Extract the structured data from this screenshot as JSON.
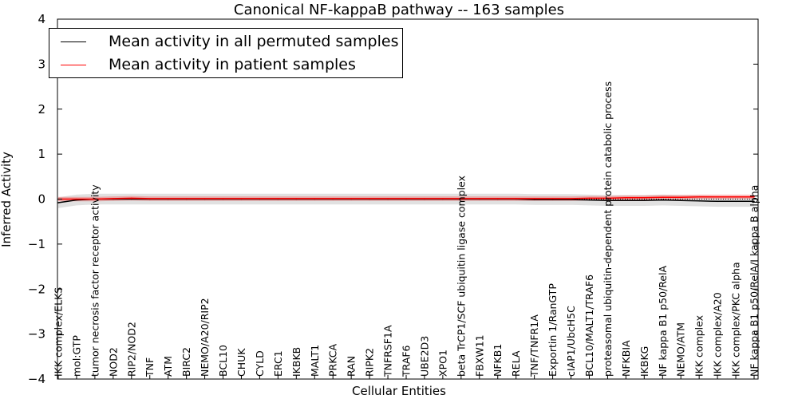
{
  "chart_data": {
    "type": "line",
    "title": "Canonical NF-kappaB pathway -- 163 samples",
    "xlabel": "Cellular Entities",
    "ylabel": "Inferred Activity",
    "ylim": [
      -4,
      4
    ],
    "yticks": [
      4,
      3,
      2,
      1,
      0,
      -1,
      -2,
      -3,
      -4
    ],
    "ytick_labels": [
      "4",
      "3",
      "2",
      "1",
      "0",
      "−1",
      "−2",
      "−3",
      "−4"
    ],
    "reference_line": 0,
    "categories": [
      "IKK complex/ELKS",
      "mol:GTP",
      "tumor necrosis factor receptor activity",
      "NOD2",
      "RIP2/NOD2",
      "TNF",
      "ATM",
      "BIRC2",
      "NEMO/A20/RIP2",
      "BCL10",
      "CHUK",
      "CYLD",
      "ERC1",
      "IKBKB",
      "MALT1",
      "PRKCA",
      "RAN",
      "RIPK2",
      "TNFRSF1A",
      "TRAF6",
      "UBE2D3",
      "XPO1",
      "beta TrCP1/SCF ubiquitin ligase complex",
      "FBXW11",
      "NFKB1",
      "RELA",
      "TNF/TNFR1A",
      "Exportin 1/RanGTP",
      "cIAP1/UbcH5C",
      "BCL10/MALT1/TRAF6",
      "proteasomal ubiquitin-dependent protein catabolic process",
      "NFKBIA",
      "IKBKG",
      "NF kappa B1 p50/RelA",
      "NEMO/ATM",
      "IKK complex",
      "IKK complex/A20",
      "IKK complex/PKC alpha",
      "NF kappa B1 p50/RelA/I kappa B alpha"
    ],
    "series": [
      {
        "name": "Mean activity in all permuted samples",
        "color": "#000000",
        "values": [
          -0.08,
          -0.02,
          0.0,
          0.0,
          0.0,
          0.0,
          0.0,
          0.0,
          0.0,
          0.0,
          0.0,
          0.0,
          0.0,
          0.0,
          0.0,
          0.0,
          0.0,
          0.0,
          0.0,
          0.0,
          0.0,
          0.0,
          0.0,
          0.0,
          0.0,
          0.0,
          -0.01,
          -0.01,
          -0.01,
          -0.02,
          -0.03,
          -0.03,
          -0.03,
          -0.02,
          -0.03,
          -0.04,
          -0.05,
          -0.05,
          -0.05
        ],
        "band": 0.12
      },
      {
        "name": "Mean activity in patient samples",
        "color": "#ff0000",
        "values": [
          0.0,
          0.0,
          0.0,
          0.01,
          0.02,
          0.01,
          0.01,
          0.01,
          0.01,
          0.01,
          0.01,
          0.01,
          0.01,
          0.01,
          0.01,
          0.01,
          0.01,
          0.01,
          0.01,
          0.01,
          0.01,
          0.01,
          0.01,
          0.01,
          0.01,
          0.01,
          0.01,
          0.01,
          0.01,
          0.02,
          0.02,
          0.03,
          0.03,
          0.04,
          0.04,
          0.05,
          0.05,
          0.05,
          0.05
        ],
        "band": 0.05
      }
    ],
    "legend": {
      "location": "top-left",
      "entries": [
        "Mean activity in all permuted samples",
        "Mean activity in patient samples"
      ]
    }
  }
}
